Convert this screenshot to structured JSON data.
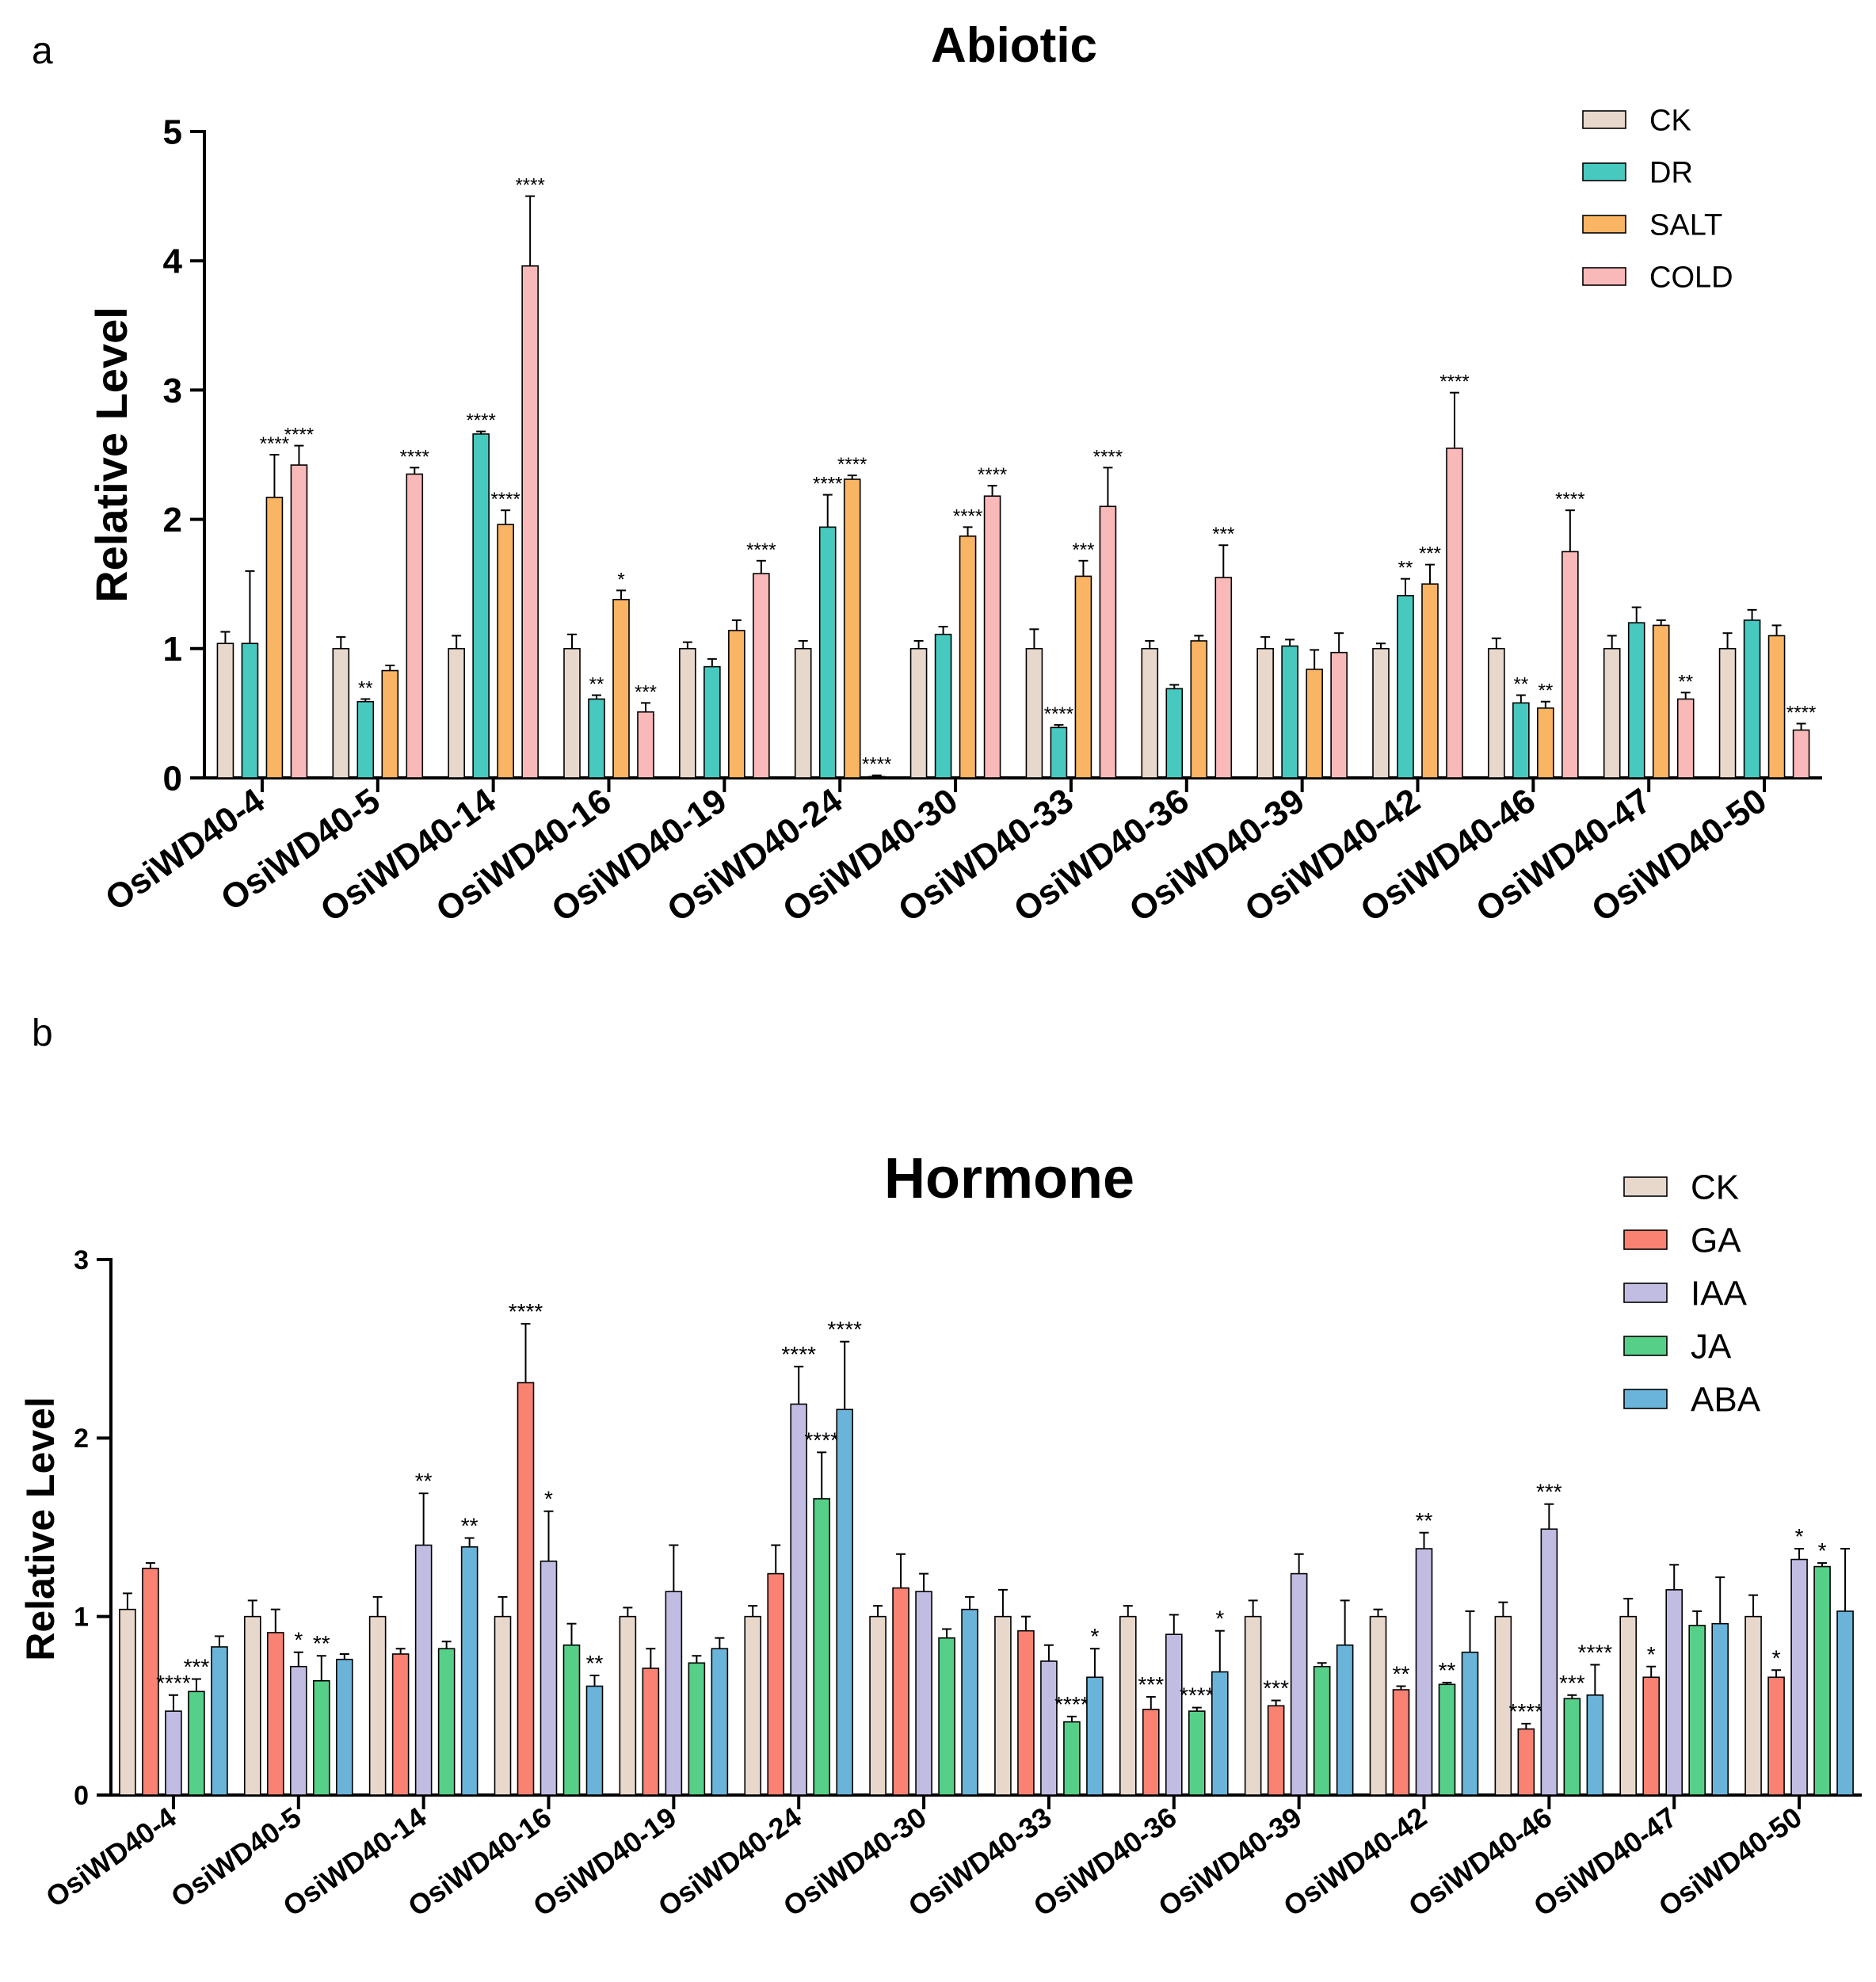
{
  "chart_data": [
    {
      "panel": "a",
      "type": "bar",
      "title": "Abiotic",
      "ylabel": "Relative Level",
      "xlabel": "",
      "ylim": [
        0,
        5
      ],
      "yticks": [
        0,
        1,
        2,
        3,
        4,
        5
      ],
      "legend": "top-right",
      "categories": [
        "OsiWD40-4",
        "OsiWD40-5",
        "OsiWD40-14",
        "OsiWD40-16",
        "OsiWD40-19",
        "OsiWD40-24",
        "OsiWD40-30",
        "OsiWD40-33",
        "OsiWD40-36",
        "OsiWD40-39",
        "OsiWD40-42",
        "OsiWD40-46",
        "OsiWD40-47",
        "OsiWD40-50"
      ],
      "series": [
        {
          "name": "CK",
          "color": "#E8D8CC",
          "values": [
            1.04,
            1.0,
            1.0,
            1.0,
            1.0,
            1.0,
            1.0,
            1.0,
            1.0,
            1.0,
            1.0,
            1.0,
            1.0,
            1.0
          ],
          "errors": [
            0.09,
            0.09,
            0.1,
            0.11,
            0.05,
            0.06,
            0.06,
            0.15,
            0.06,
            0.09,
            0.04,
            0.08,
            0.1,
            0.12
          ],
          "sig": [
            "",
            "",
            "",
            "",
            "",
            "",
            "",
            "",
            "",
            "",
            "",
            "",
            "",
            ""
          ]
        },
        {
          "name": "DR",
          "color": "#48C9BF",
          "values": [
            1.04,
            0.59,
            2.66,
            0.61,
            0.86,
            1.94,
            1.11,
            0.39,
            0.69,
            1.02,
            1.41,
            0.58,
            1.2,
            1.22
          ],
          "errors": [
            0.56,
            0.02,
            0.02,
            0.03,
            0.06,
            0.25,
            0.06,
            0.02,
            0.03,
            0.05,
            0.13,
            0.06,
            0.12,
            0.08
          ],
          "sig": [
            "",
            "**",
            "****",
            "**",
            "",
            "****",
            "",
            "****",
            "",
            "",
            "**",
            "**",
            "",
            ""
          ]
        },
        {
          "name": "SALT",
          "color": "#F9B464",
          "values": [
            2.17,
            0.83,
            1.96,
            1.38,
            1.14,
            2.31,
            1.87,
            1.56,
            1.06,
            0.84,
            1.5,
            0.54,
            1.18,
            1.1
          ],
          "errors": [
            0.33,
            0.04,
            0.11,
            0.07,
            0.08,
            0.03,
            0.07,
            0.12,
            0.04,
            0.15,
            0.15,
            0.05,
            0.04,
            0.08
          ],
          "sig": [
            "****",
            "",
            "****",
            "*",
            "",
            "****",
            "****",
            "***",
            "",
            "",
            "***",
            "**",
            "",
            ""
          ]
        },
        {
          "name": "COLD",
          "color": "#F9B9B9",
          "values": [
            2.42,
            2.35,
            3.96,
            0.51,
            1.58,
            0.01,
            2.18,
            2.1,
            1.55,
            0.97,
            2.55,
            1.75,
            0.61,
            0.37
          ],
          "errors": [
            0.15,
            0.05,
            0.54,
            0.07,
            0.1,
            0.01,
            0.08,
            0.3,
            0.25,
            0.15,
            0.43,
            0.32,
            0.05,
            0.05
          ],
          "sig": [
            "****",
            "****",
            "****",
            "***",
            "****",
            "****",
            "****",
            "****",
            "***",
            "",
            "****",
            "****",
            "**",
            "****"
          ]
        }
      ]
    },
    {
      "panel": "b",
      "type": "bar",
      "title": "Hormone",
      "ylabel": "Relative Level",
      "xlabel": "",
      "ylim": [
        0,
        3
      ],
      "yticks": [
        0,
        1,
        2,
        3
      ],
      "legend": "top-right",
      "categories": [
        "OsiWD40-4",
        "OsiWD40-5",
        "OsiWD40-14",
        "OsiWD40-16",
        "OsiWD40-19",
        "OsiWD40-24",
        "OsiWD40-30",
        "OsiWD40-33",
        "OsiWD40-36",
        "OsiWD40-39",
        "OsiWD40-42",
        "OsiWD40-46",
        "OsiWD40-47",
        "OsiWD40-50"
      ],
      "series": [
        {
          "name": "CK",
          "color": "#E8D8CC",
          "values": [
            1.04,
            1.0,
            1.0,
            1.0,
            1.0,
            1.0,
            1.0,
            1.0,
            1.0,
            1.0,
            1.0,
            1.0,
            1.0,
            1.0
          ],
          "errors": [
            0.09,
            0.09,
            0.11,
            0.11,
            0.05,
            0.06,
            0.06,
            0.15,
            0.06,
            0.09,
            0.04,
            0.08,
            0.1,
            0.12
          ],
          "sig": [
            "",
            "",
            "",
            "",
            "",
            "",
            "",
            "",
            "",
            "",
            "",
            "",
            "",
            ""
          ]
        },
        {
          "name": "GA",
          "color": "#F98272",
          "values": [
            1.27,
            0.91,
            0.79,
            2.31,
            0.71,
            1.24,
            1.16,
            0.92,
            0.48,
            0.5,
            0.59,
            0.37,
            0.66,
            0.66
          ],
          "errors": [
            0.03,
            0.13,
            0.03,
            0.33,
            0.11,
            0.16,
            0.19,
            0.08,
            0.07,
            0.03,
            0.02,
            0.03,
            0.06,
            0.04
          ],
          "sig": [
            "",
            "",
            "",
            "****",
            "",
            "",
            "",
            "",
            "***",
            "***",
            "**",
            "****",
            "*",
            "*"
          ]
        },
        {
          "name": "IAA",
          "color": "#C1BDE2",
          "values": [
            0.47,
            0.72,
            1.4,
            1.31,
            1.14,
            2.19,
            1.14,
            0.75,
            0.9,
            1.24,
            1.38,
            1.49,
            1.15,
            1.32
          ],
          "errors": [
            0.09,
            0.08,
            0.29,
            0.28,
            0.26,
            0.21,
            0.1,
            0.09,
            0.11,
            0.11,
            0.09,
            0.14,
            0.14,
            0.06
          ],
          "sig": [
            "****",
            "*",
            "**",
            "*",
            "",
            "****",
            "",
            "",
            "",
            "",
            "**",
            "***",
            "",
            "*"
          ]
        },
        {
          "name": "JA",
          "color": "#56CF88",
          "values": [
            0.58,
            0.64,
            0.82,
            0.84,
            0.74,
            1.66,
            0.88,
            0.41,
            0.47,
            0.72,
            0.62,
            0.54,
            0.95,
            1.28
          ],
          "errors": [
            0.07,
            0.14,
            0.04,
            0.12,
            0.04,
            0.26,
            0.05,
            0.03,
            0.02,
            0.02,
            0.01,
            0.02,
            0.08,
            0.02
          ],
          "sig": [
            "***",
            "**",
            "",
            "",
            "",
            "****",
            "",
            "****",
            "****",
            "",
            "**",
            "***",
            "",
            "*"
          ]
        },
        {
          "name": "ABA",
          "color": "#6AB4DA",
          "values": [
            0.83,
            0.76,
            1.39,
            0.61,
            0.82,
            2.16,
            1.04,
            0.66,
            0.69,
            0.84,
            0.8,
            0.56,
            0.96,
            1.03
          ],
          "errors": [
            0.06,
            0.03,
            0.05,
            0.06,
            0.06,
            0.38,
            0.07,
            0.16,
            0.23,
            0.25,
            0.23,
            0.17,
            0.26,
            0.35
          ],
          "sig": [
            "",
            "",
            "**",
            "**",
            "",
            "****",
            "",
            "*",
            "*",
            "",
            "",
            "****",
            "",
            ""
          ]
        }
      ]
    }
  ],
  "panel_labels": [
    "a",
    "b"
  ]
}
